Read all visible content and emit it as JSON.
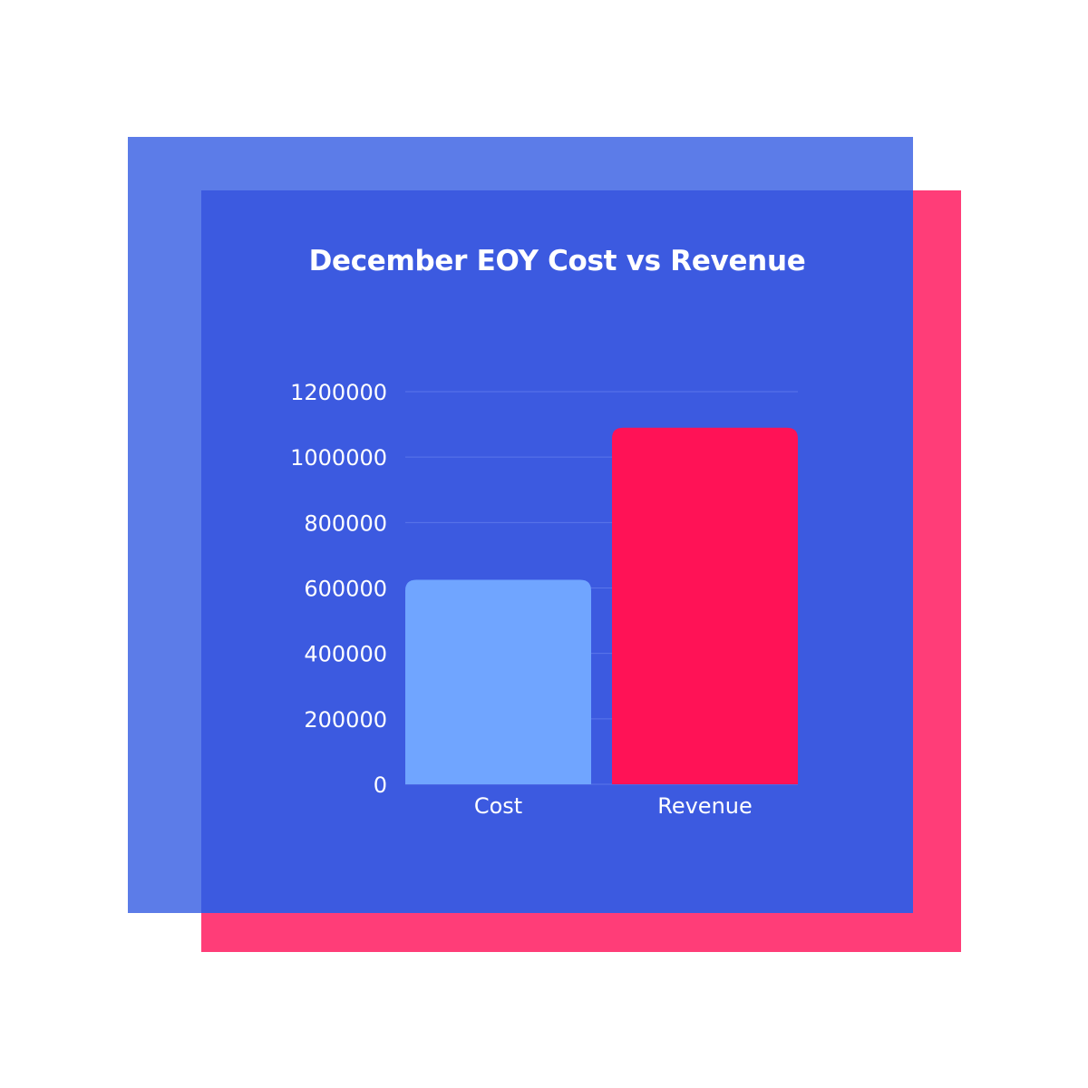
{
  "colors": {
    "background": "#ffffff",
    "panel_back": "#5c7ce8",
    "panel_accent": "#ff3d78",
    "panel_main": "#3c5ae0",
    "gridline": "#5a76ea",
    "text": "#ffffff"
  },
  "chart_data": {
    "type": "bar",
    "title": "December EOY Cost vs Revenue",
    "xlabel": "",
    "ylabel": "",
    "categories": [
      "Cost",
      "Revenue"
    ],
    "values": [
      625000,
      1090000
    ],
    "bar_colors": [
      "#70a5ff",
      "#ff1256"
    ],
    "ylim": [
      0,
      1200000
    ],
    "yticks": [
      "0",
      "200000",
      "400000",
      "600000",
      "800000",
      "1000000",
      "1200000"
    ],
    "grid": true,
    "legend": "none"
  }
}
